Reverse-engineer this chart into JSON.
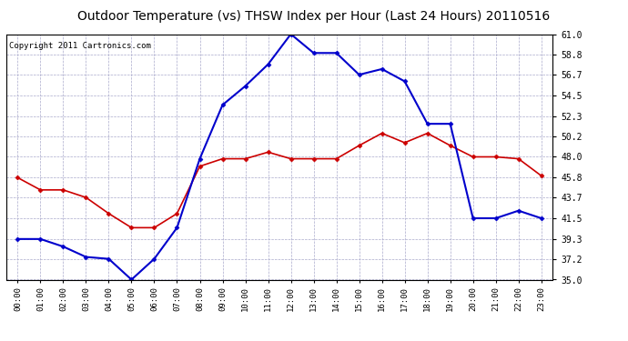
{
  "title": "Outdoor Temperature (vs) THSW Index per Hour (Last 24 Hours) 20110516",
  "copyright": "Copyright 2011 Cartronics.com",
  "hours": [
    "00:00",
    "01:00",
    "02:00",
    "03:00",
    "04:00",
    "05:00",
    "06:00",
    "07:00",
    "08:00",
    "09:00",
    "10:00",
    "11:00",
    "12:00",
    "13:00",
    "14:00",
    "15:00",
    "16:00",
    "17:00",
    "18:00",
    "19:00",
    "20:00",
    "21:00",
    "22:00",
    "23:00"
  ],
  "temp_red": [
    45.8,
    44.5,
    44.5,
    43.7,
    42.0,
    40.5,
    40.5,
    42.0,
    47.0,
    47.8,
    47.8,
    48.5,
    47.8,
    47.8,
    47.8,
    49.2,
    50.5,
    49.5,
    50.5,
    49.2,
    48.0,
    48.0,
    47.8,
    46.0
  ],
  "thsw_blue": [
    39.3,
    39.3,
    38.5,
    37.4,
    37.2,
    35.0,
    37.2,
    40.5,
    47.8,
    53.5,
    55.5,
    57.8,
    61.0,
    59.0,
    59.0,
    56.7,
    57.3,
    56.0,
    51.5,
    51.5,
    41.5,
    41.5,
    42.3,
    41.5
  ],
  "ylim": [
    35.0,
    61.0
  ],
  "yticks": [
    35.0,
    37.2,
    39.3,
    41.5,
    43.7,
    45.8,
    48.0,
    50.2,
    52.3,
    54.5,
    56.7,
    58.8,
    61.0
  ],
  "bg_color": "#ffffff",
  "plot_bg_color": "#ffffff",
  "grid_color": "#aaaacc",
  "line_color_red": "#cc0000",
  "line_color_blue": "#0000cc",
  "title_fontsize": 10,
  "copyright_fontsize": 6.5
}
